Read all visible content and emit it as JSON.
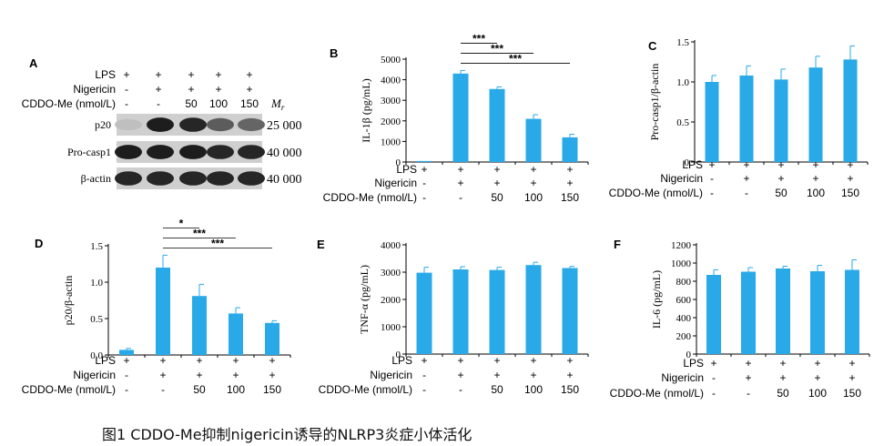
{
  "caption": "图1  CDDO-Me抑制nigericin诱导的NLRP3炎症小体活化",
  "colors": {
    "bar": "#2aa9e8",
    "axis": "#000000"
  },
  "treatments": {
    "row_labels": [
      "LPS",
      "Nigericin",
      "CDDO-Me (nmol/L)"
    ],
    "lps": [
      "+",
      "+",
      "+",
      "+",
      "+"
    ],
    "nigericin": [
      "-",
      "+",
      "+",
      "+",
      "+"
    ],
    "cddo": [
      "-",
      "-",
      "50",
      "100",
      "150"
    ]
  },
  "blot": {
    "panel_label": "A",
    "mr_label": "Mr",
    "lanes": 5,
    "rows": [
      {
        "name": "p20",
        "mr": "25 000",
        "intensity": [
          0.05,
          0.95,
          0.9,
          0.6,
          0.55
        ]
      },
      {
        "name": "Pro-casp1",
        "mr": "40 000",
        "intensity": [
          0.95,
          0.95,
          0.95,
          0.9,
          0.9
        ]
      },
      {
        "name": "β-actin",
        "mr": "40 000",
        "intensity": [
          0.9,
          0.9,
          0.9,
          0.9,
          0.9
        ]
      }
    ]
  },
  "chart_data": [
    {
      "panel": "B",
      "type": "bar",
      "ylabel": "IL-1β (pg/mL)",
      "ylim": [
        0,
        5000
      ],
      "yticks": [
        0,
        1000,
        2000,
        3000,
        4000,
        5000
      ],
      "values": [
        50,
        4300,
        3550,
        2100,
        1200
      ],
      "errors": [
        0,
        150,
        100,
        200,
        150
      ],
      "sig": [
        {
          "from": 1,
          "to": 2,
          "label": "***"
        },
        {
          "from": 1,
          "to": 3,
          "label": "***"
        },
        {
          "from": 1,
          "to": 4,
          "label": "***"
        }
      ]
    },
    {
      "panel": "C",
      "type": "bar",
      "ylabel": "Pro-casp1/β-actin",
      "ylim": [
        0,
        1.5
      ],
      "yticks": [
        "0",
        "0.5",
        "1.0",
        "1.5"
      ],
      "values": [
        1.0,
        1.08,
        1.03,
        1.18,
        1.28
      ],
      "errors": [
        0.08,
        0.12,
        0.13,
        0.14,
        0.17
      ],
      "sig": []
    },
    {
      "panel": "D",
      "type": "bar",
      "ylabel": "p20/β-actin",
      "ylim": [
        0,
        1.5
      ],
      "yticks": [
        "0.0",
        "0.5",
        "1.0",
        "1.5"
      ],
      "values": [
        0.07,
        1.2,
        0.81,
        0.57,
        0.44
      ],
      "errors": [
        0.02,
        0.17,
        0.16,
        0.08,
        0.03
      ],
      "sig": [
        {
          "from": 1,
          "to": 2,
          "label": "*"
        },
        {
          "from": 1,
          "to": 3,
          "label": "***"
        },
        {
          "from": 1,
          "to": 4,
          "label": "***"
        }
      ]
    },
    {
      "panel": "E",
      "type": "bar",
      "ylabel": "TNF-α (pg/mL)",
      "ylim": [
        0,
        4000
      ],
      "yticks": [
        0,
        1000,
        2000,
        3000,
        4000
      ],
      "values": [
        2980,
        3100,
        3080,
        3260,
        3150
      ],
      "errors": [
        200,
        100,
        100,
        100,
        60
      ],
      "sig": []
    },
    {
      "panel": "F",
      "type": "bar",
      "ylabel": "IL-6 (pg/mL)",
      "ylim": [
        0,
        1200
      ],
      "yticks": [
        0,
        200,
        400,
        600,
        800,
        1000,
        1200
      ],
      "values": [
        870,
        905,
        940,
        910,
        925
      ],
      "errors": [
        55,
        45,
        25,
        65,
        110
      ],
      "sig": []
    }
  ]
}
